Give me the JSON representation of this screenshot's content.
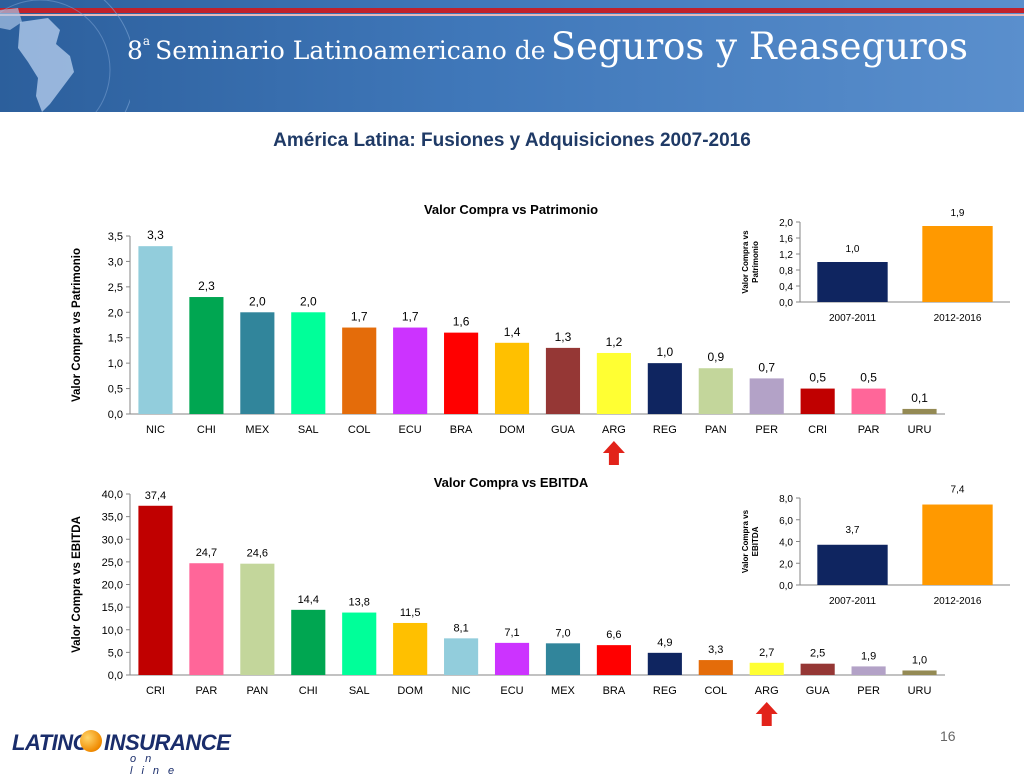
{
  "banner": {
    "ordinal": "8",
    "ordinal_sup": "a",
    "title_small": "Seminario Latinoamericano de",
    "title_big": "Seguros y Reaseguros"
  },
  "slide_title": "América Latina: Fusiones y Adquisiciones 2007-2016",
  "colors": {
    "banner_blue": "#3f77b9",
    "marker_red": "#e2231a",
    "navy": "#0f2560",
    "orange": "#ff9900"
  },
  "chart_data": [
    {
      "id": "patrimonio-main",
      "type": "bar",
      "title": "Valor Compra vs Patrimonio",
      "ylabel": "Valor Compra vs Patrimonio",
      "ylim": [
        0,
        3.5
      ],
      "yticks": [
        "0,0",
        "0,5",
        "1,0",
        "1,5",
        "2,0",
        "2,5",
        "3,0",
        "3,5"
      ],
      "categories": [
        "NIC",
        "CHI",
        "MEX",
        "SAL",
        "COL",
        "ECU",
        "BRA",
        "DOM",
        "GUA",
        "ARG",
        "REG",
        "PAN",
        "PER",
        "CRI",
        "PAR",
        "URU"
      ],
      "values": [
        3.3,
        2.3,
        2.0,
        2.0,
        1.7,
        1.7,
        1.6,
        1.4,
        1.3,
        1.2,
        1.0,
        0.9,
        0.7,
        0.5,
        0.5,
        0.1
      ],
      "labels": [
        "3,3",
        "2,3",
        "2,0",
        "2,0",
        "1,7",
        "1,7",
        "1,6",
        "1,4",
        "1,3",
        "1,2",
        "1,0",
        "0,9",
        "0,7",
        "0,5",
        "0,5",
        "0,1"
      ],
      "colors": [
        "#92cddc",
        "#00a651",
        "#31859b",
        "#00ff99",
        "#e46c0a",
        "#cc33ff",
        "#ff0000",
        "#ffc000",
        "#953735",
        "#ffff33",
        "#0f2560",
        "#c3d69b",
        "#b3a2c7",
        "#c00000",
        "#ff6699",
        "#948a54"
      ],
      "highlight": "ARG",
      "grid": false
    },
    {
      "id": "patrimonio-inset",
      "type": "bar",
      "ylabel": "Valor Compra vs Patrimonio",
      "ylim": [
        0,
        2.0
      ],
      "yticks": [
        "0,0",
        "0,4",
        "0,8",
        "1,2",
        "1,6",
        "2,0"
      ],
      "categories": [
        "2007-2011",
        "2012-2016"
      ],
      "values": [
        1.0,
        1.9
      ],
      "labels": [
        "1,0",
        "1,9"
      ],
      "colors": [
        "#0f2560",
        "#ff9900"
      ],
      "grid": false
    },
    {
      "id": "ebitda-main",
      "type": "bar",
      "title": "Valor Compra vs EBITDA",
      "ylabel": "Valor Compra vs EBITDA",
      "ylim": [
        0,
        40
      ],
      "yticks": [
        "0,0",
        "5,0",
        "10,0",
        "15,0",
        "20,0",
        "25,0",
        "30,0",
        "35,0",
        "40,0"
      ],
      "categories": [
        "CRI",
        "PAR",
        "PAN",
        "CHI",
        "SAL",
        "DOM",
        "NIC",
        "ECU",
        "MEX",
        "BRA",
        "REG",
        "COL",
        "ARG",
        "GUA",
        "PER",
        "URU"
      ],
      "values": [
        37.4,
        24.7,
        24.6,
        14.4,
        13.8,
        11.5,
        8.1,
        7.1,
        7.0,
        6.6,
        4.9,
        3.3,
        2.7,
        2.5,
        1.9,
        1.0
      ],
      "labels": [
        "37,4",
        "24,7",
        "24,6",
        "14,4",
        "13,8",
        "11,5",
        "8,1",
        "7,1",
        "7,0",
        "6,6",
        "4,9",
        "3,3",
        "2,7",
        "2,5",
        "1,9",
        "1,0"
      ],
      "colors": [
        "#c00000",
        "#ff6699",
        "#c3d69b",
        "#00a651",
        "#00ff99",
        "#ffc000",
        "#92cddc",
        "#cc33ff",
        "#31859b",
        "#ff0000",
        "#0f2560",
        "#e46c0a",
        "#ffff33",
        "#953735",
        "#b3a2c7",
        "#948a54"
      ],
      "highlight": "ARG",
      "grid": false
    },
    {
      "id": "ebitda-inset",
      "type": "bar",
      "ylabel": "Valor Compra vs EBITDA",
      "ylim": [
        0,
        8.0
      ],
      "yticks": [
        "0,0",
        "2,0",
        "4,0",
        "6,0",
        "8,0"
      ],
      "categories": [
        "2007-2011",
        "2012-2016"
      ],
      "values": [
        3.7,
        7.4
      ],
      "labels": [
        "3,7",
        "7,4"
      ],
      "colors": [
        "#0f2560",
        "#ff9900"
      ],
      "grid": false
    }
  ],
  "footer": {
    "logo_word_a": "LATINO",
    "logo_word_b": "INSURANCE",
    "logo_sub": "on line",
    "page_number": "16"
  }
}
